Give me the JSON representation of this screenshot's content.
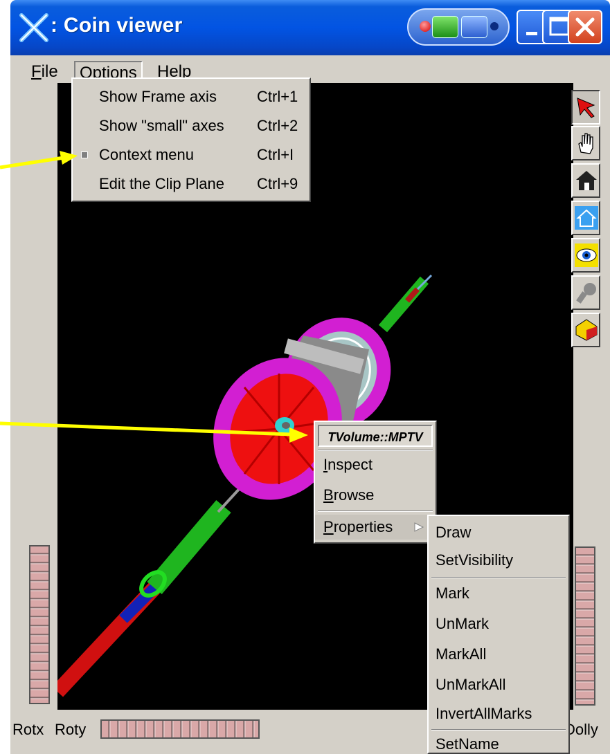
{
  "window": {
    "title": ": Coin viewer",
    "buttons": [
      "minimize",
      "maximize",
      "close"
    ]
  },
  "menubar": {
    "items": [
      {
        "label": "File",
        "mnemonic": "F"
      },
      {
        "label": "Options",
        "mnemonic": "O",
        "active": true
      },
      {
        "label": "Help",
        "mnemonic": "H"
      }
    ]
  },
  "options_menu": {
    "items": [
      {
        "label": "Show Frame axis",
        "shortcut": "Ctrl+1",
        "checked": false
      },
      {
        "label": "Show \"small\" axes",
        "shortcut": "Ctrl+2",
        "checked": false
      },
      {
        "label": "Context menu",
        "shortcut": "Ctrl+I",
        "checked": true
      },
      {
        "label": "Edit the Clip Plane",
        "shortcut": "Ctrl+9",
        "checked": false
      }
    ]
  },
  "context_menu": {
    "header": "TVolume::MPTV",
    "items": [
      {
        "label": "Inspect",
        "mnemonic": "I"
      },
      {
        "label": "Browse",
        "mnemonic": "B"
      },
      {
        "label": "Properties",
        "mnemonic": "P",
        "submenu": true
      }
    ]
  },
  "properties_submenu": {
    "groups": [
      [
        "Draw",
        "SetVisibility"
      ],
      [
        "Mark",
        "UnMark",
        "MarkAll",
        "UnMarkAll",
        "InvertAllMarks"
      ],
      [
        "SetName"
      ]
    ]
  },
  "toolbar": {
    "tools": [
      "select-arrow-icon",
      "hand-icon",
      "home-icon",
      "set-home-icon",
      "view-all-eye-icon",
      "seek-icon",
      "projection-cube-icon"
    ]
  },
  "thumbwheels": {
    "left_label": "Rotx",
    "bottom_label": "Roty",
    "right_label": "Dolly"
  },
  "colors": {
    "title_bar": "#0254e3",
    "background": "#d4d0c8",
    "viewport": "#000000",
    "annotation_arrow": "#ffff00"
  }
}
